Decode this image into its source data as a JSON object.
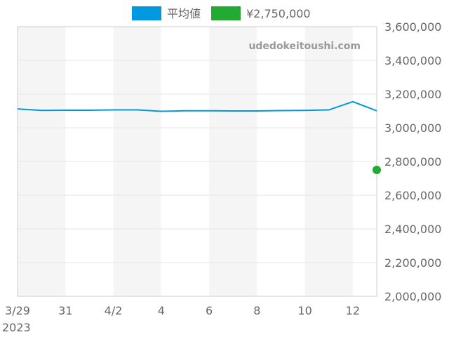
{
  "chart_data": {
    "type": "line",
    "watermark": "udedokeitoushi.com",
    "x_tick_labels": [
      "3/29",
      "31",
      "4/2",
      "4",
      "6",
      "8",
      "10",
      "12"
    ],
    "x_year_label": "2023",
    "y_tick_labels": [
      "2,000,000",
      "2,200,000",
      "2,400,000",
      "2,600,000",
      "2,800,000",
      "3,000,000",
      "3,200,000",
      "3,400,000",
      "3,600,000"
    ],
    "ylim": [
      2000000,
      3600000
    ],
    "y_ticks": [
      2000000,
      2200000,
      2400000,
      2600000,
      2800000,
      3000000,
      3200000,
      3400000,
      3600000
    ],
    "x": [
      "3/29",
      "3/30",
      "3/31",
      "4/1",
      "4/2",
      "4/3",
      "4/4",
      "4/5",
      "4/6",
      "4/7",
      "4/8",
      "4/9",
      "4/10",
      "4/11",
      "4/12",
      "4/13"
    ],
    "series": [
      {
        "name": "平均値",
        "type": "line",
        "color": "#0099e0",
        "values": [
          3112000,
          3103000,
          3104000,
          3104000,
          3106000,
          3106000,
          3098000,
          3101000,
          3101000,
          3100000,
          3100000,
          3102000,
          3103000,
          3106000,
          3155000,
          3101000
        ]
      },
      {
        "name": "¥2,750,000",
        "type": "point",
        "color": "#22aa33",
        "points": [
          {
            "x": "4/13",
            "y": 2750000
          }
        ]
      }
    ],
    "grid": true,
    "legend": "top-center"
  }
}
